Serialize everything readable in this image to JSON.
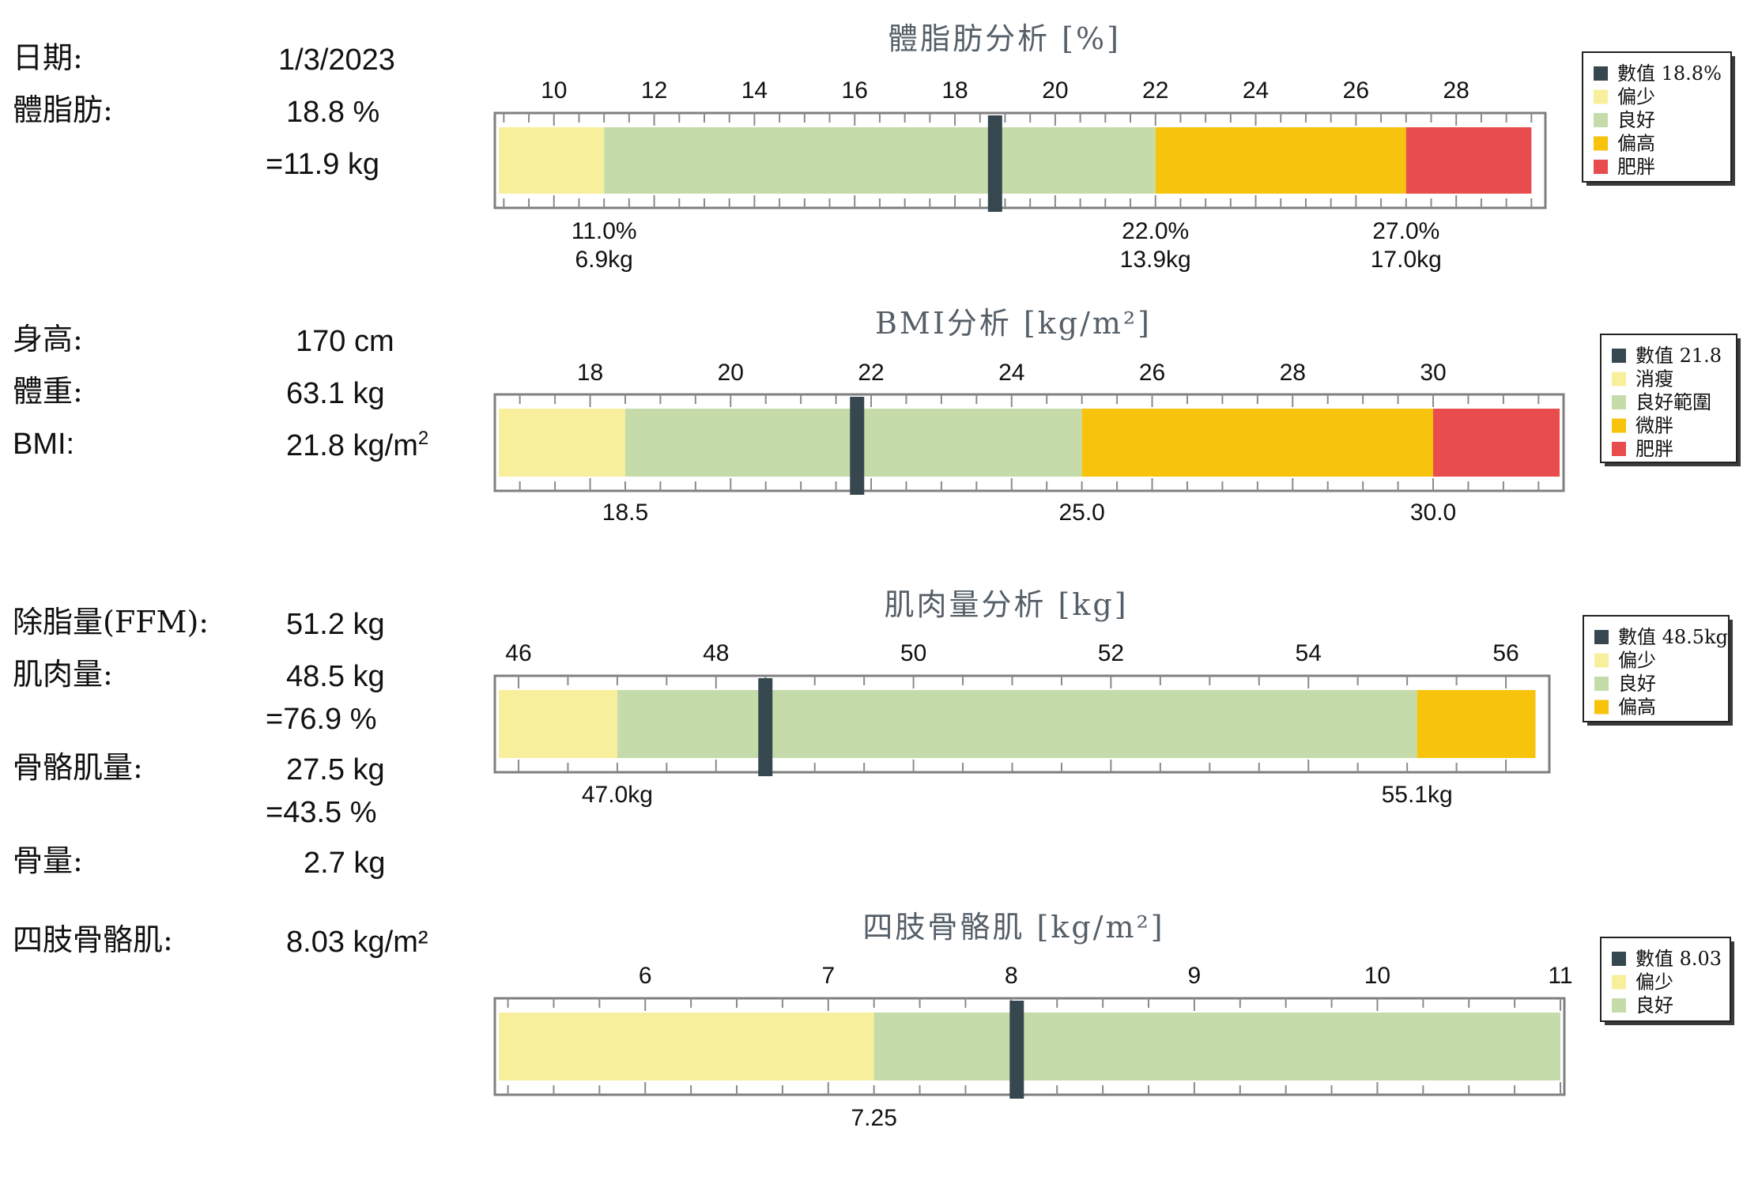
{
  "info": {
    "date_label": "日期:",
    "date_value": "1/3/2023",
    "bodyfat_label": "體脂肪:",
    "bodyfat_value": "18.8 %",
    "bodyfat_kg": "=11.9 kg",
    "height_label": "身高:",
    "height_value": "170 cm",
    "weight_label": "體重:",
    "weight_value": "63.1 kg",
    "bmi_label": "BMI:",
    "bmi_value_text": "21.8 kg/m",
    "bmi_value_sup": "2",
    "ffm_label": "除脂量(FFM):",
    "ffm_value": "51.2 kg",
    "muscle_label": "肌肉量:",
    "muscle_value": "48.5 kg",
    "muscle_pct": "=76.9 %",
    "skeletal_label": "骨骼肌量:",
    "skeletal_value": "27.5 kg",
    "skeletal_pct": "=43.5 %",
    "bone_label": "骨量:",
    "bone_value": "2.7 kg",
    "limb_label": "四肢骨骼肌:",
    "limb_value": "8.03 kg/m²"
  },
  "colors": {
    "value_marker": "#37474f",
    "low": "#f8ef9d",
    "good": "#c5dcaa",
    "high": "#f8c30c",
    "obese": "#e84c4c",
    "frame": "#7f7f7f",
    "title": "#555f68"
  },
  "chart_data": [
    {
      "type": "bar",
      "title": "體脂肪分析 [%]",
      "xlim": [
        8.9,
        29.7
      ],
      "ticks": [
        10,
        12,
        14,
        16,
        18,
        20,
        22,
        24,
        26,
        28
      ],
      "value": 18.8,
      "bands": [
        {
          "from": 8.9,
          "to": 11.0,
          "color": "#f8ef9d"
        },
        {
          "from": 11.0,
          "to": 22.0,
          "color": "#c5dcaa"
        },
        {
          "from": 22.0,
          "to": 27.0,
          "color": "#f8c30c"
        },
        {
          "from": 27.0,
          "to": 29.5,
          "color": "#e84c4c"
        }
      ],
      "thresholds": [
        {
          "at": 11.0,
          "lines": [
            "11.0%",
            "6.9kg"
          ]
        },
        {
          "at": 22.0,
          "lines": [
            "22.0%",
            "13.9kg"
          ]
        },
        {
          "at": 27.0,
          "lines": [
            "27.0%",
            "17.0kg"
          ]
        }
      ],
      "legend": [
        {
          "label": "數值 18.8%",
          "color": "#37474f"
        },
        {
          "label": "偏少",
          "color": "#f8ef9d"
        },
        {
          "label": "良好",
          "color": "#c5dcaa"
        },
        {
          "label": "偏高",
          "color": "#f8c30c"
        },
        {
          "label": "肥胖",
          "color": "#e84c4c"
        }
      ]
    },
    {
      "type": "bar",
      "title": "BMI分析 [kg/m²]",
      "xlim": [
        16.7,
        31.8
      ],
      "ticks": [
        18,
        20,
        22,
        24,
        26,
        28,
        30
      ],
      "value": 21.8,
      "bands": [
        {
          "from": 16.7,
          "to": 18.5,
          "color": "#f8ef9d"
        },
        {
          "from": 18.5,
          "to": 25.0,
          "color": "#c5dcaa"
        },
        {
          "from": 25.0,
          "to": 30.0,
          "color": "#f8c30c"
        },
        {
          "from": 30.0,
          "to": 31.8,
          "color": "#e84c4c"
        }
      ],
      "thresholds": [
        {
          "at": 18.5,
          "lines": [
            "18.5"
          ]
        },
        {
          "at": 25.0,
          "lines": [
            "25.0"
          ]
        },
        {
          "at": 30.0,
          "lines": [
            "30.0"
          ]
        }
      ],
      "legend": [
        {
          "label": "數值 21.8",
          "color": "#37474f"
        },
        {
          "label": "消瘦",
          "color": "#f8ef9d"
        },
        {
          "label": "良好範圍",
          "color": "#c5dcaa"
        },
        {
          "label": "微胖",
          "color": "#f8c30c"
        },
        {
          "label": "肥胖",
          "color": "#e84c4c"
        }
      ]
    },
    {
      "type": "bar",
      "title": "肌肉量分析 [kg]",
      "xlim": [
        45.8,
        56.4
      ],
      "ticks": [
        46,
        48,
        50,
        52,
        54,
        56
      ],
      "value": 48.5,
      "bands": [
        {
          "from": 45.8,
          "to": 47.0,
          "color": "#f8ef9d"
        },
        {
          "from": 47.0,
          "to": 55.1,
          "color": "#c5dcaa"
        },
        {
          "from": 55.1,
          "to": 56.3,
          "color": "#f8c30c"
        }
      ],
      "thresholds": [
        {
          "at": 47.0,
          "lines": [
            "47.0kg"
          ]
        },
        {
          "at": 55.1,
          "lines": [
            "55.1kg"
          ]
        }
      ],
      "legend": [
        {
          "label": "數值 48.5kg",
          "color": "#37474f"
        },
        {
          "label": "偏少",
          "color": "#f8ef9d"
        },
        {
          "label": "良好",
          "color": "#c5dcaa"
        },
        {
          "label": "偏高",
          "color": "#f8c30c"
        }
      ]
    },
    {
      "type": "bar",
      "title": "四肢骨骼肌 [kg/m²]",
      "xlim": [
        5.2,
        11.0
      ],
      "ticks": [
        6,
        7,
        8,
        9,
        10,
        11
      ],
      "value": 8.03,
      "bands": [
        {
          "from": 5.2,
          "to": 7.25,
          "color": "#f8ef9d"
        },
        {
          "from": 7.25,
          "to": 11.0,
          "color": "#c5dcaa"
        }
      ],
      "thresholds": [
        {
          "at": 7.25,
          "lines": [
            "7.25"
          ]
        }
      ],
      "legend": [
        {
          "label": "數值 8.03",
          "color": "#37474f"
        },
        {
          "label": "偏少",
          "color": "#f8ef9d"
        },
        {
          "label": "良好",
          "color": "#c5dcaa"
        }
      ]
    }
  ]
}
